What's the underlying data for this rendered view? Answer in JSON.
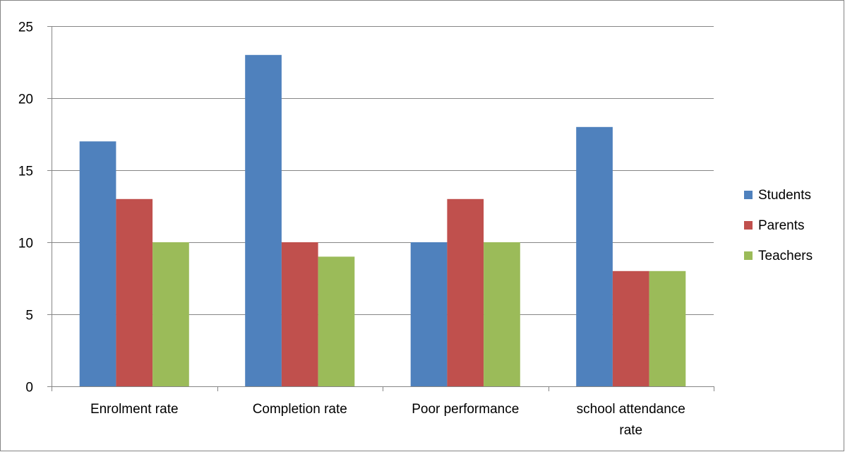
{
  "chart_data": {
    "type": "bar",
    "categories": [
      [
        "Enrolment rate"
      ],
      [
        "Completion rate"
      ],
      [
        "Poor performance"
      ],
      [
        "school attendance",
        "rate"
      ]
    ],
    "series": [
      {
        "name": "Students",
        "color": "#4F81BD",
        "values": [
          17,
          23,
          10,
          18
        ]
      },
      {
        "name": "Parents",
        "color": "#C0504D",
        "values": [
          13,
          10,
          13,
          8
        ]
      },
      {
        "name": "Teachers",
        "color": "#9BBB59",
        "values": [
          10,
          9,
          10,
          8
        ]
      }
    ],
    "ylim": [
      0,
      25
    ],
    "yticks": [
      "0",
      "5",
      "10",
      "15",
      "20",
      "25"
    ],
    "grid": true,
    "legend": "right"
  }
}
